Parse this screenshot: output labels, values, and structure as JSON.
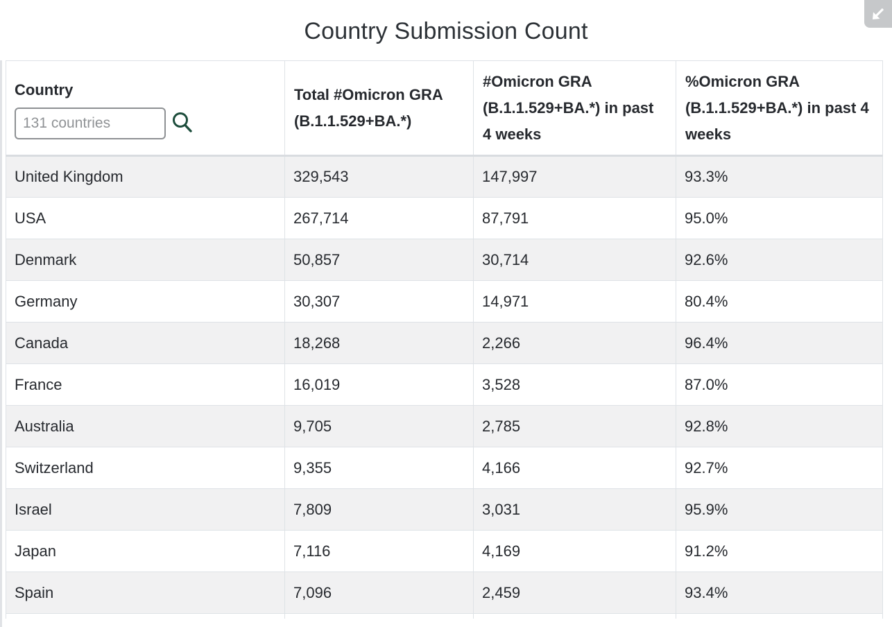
{
  "page": {
    "title": "Country Submission Count"
  },
  "corner_icon": {
    "name": "collapse-arrow",
    "background": "#c6c8ca",
    "arrow_color": "#ffffff"
  },
  "colors": {
    "accent_green": "#1d4d3c",
    "row_stripe": "#f1f1f2",
    "table_border": "#dee2e6",
    "text": "#26292e"
  },
  "table": {
    "search": {
      "placeholder": "131 countries"
    },
    "columns": [
      {
        "label": "Country"
      },
      {
        "label": "Total #Omicron GRA (B.1.1.529+BA.*)"
      },
      {
        "label": "#Omicron GRA (B.1.1.529+BA.*) in past 4 weeks"
      },
      {
        "label": "%Omicron GRA (B.1.1.529+BA.*) in past 4 weeks"
      }
    ],
    "rows": [
      {
        "country": "United Kingdom",
        "total": "329,543",
        "recent": "147,997",
        "pct": "93.3%"
      },
      {
        "country": "USA",
        "total": "267,714",
        "recent": "87,791",
        "pct": "95.0%"
      },
      {
        "country": "Denmark",
        "total": "50,857",
        "recent": "30,714",
        "pct": "92.6%"
      },
      {
        "country": "Germany",
        "total": "30,307",
        "recent": "14,971",
        "pct": "80.4%"
      },
      {
        "country": "Canada",
        "total": "18,268",
        "recent": "2,266",
        "pct": "96.4%"
      },
      {
        "country": "France",
        "total": "16,019",
        "recent": "3,528",
        "pct": "87.0%"
      },
      {
        "country": "Australia",
        "total": "9,705",
        "recent": "2,785",
        "pct": "92.8%"
      },
      {
        "country": "Switzerland",
        "total": "9,355",
        "recent": "4,166",
        "pct": "92.7%"
      },
      {
        "country": "Israel",
        "total": "7,809",
        "recent": "3,031",
        "pct": "95.9%"
      },
      {
        "country": "Japan",
        "total": "7,116",
        "recent": "4,169",
        "pct": "91.2%"
      },
      {
        "country": "Spain",
        "total": "7,096",
        "recent": "2,459",
        "pct": "93.4%"
      }
    ]
  }
}
